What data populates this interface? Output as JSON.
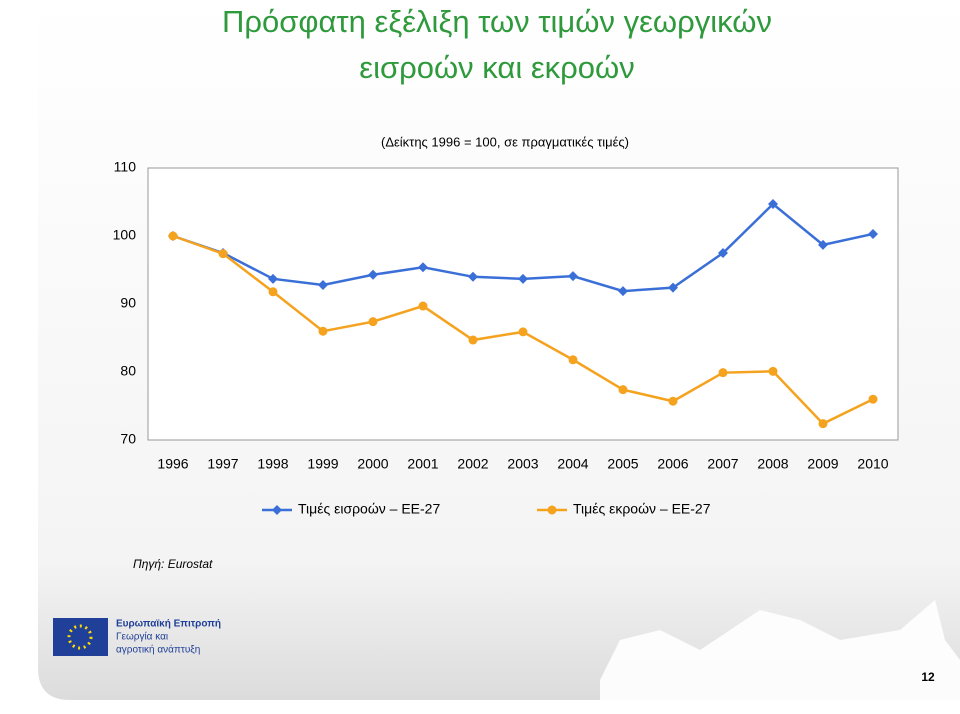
{
  "chart_data": {
    "type": "line",
    "title": [
      "Πρόσφατη εξέλιξη των τιμών γεωργικών",
      "εισροών και εκροών"
    ],
    "subtitle": "(Δείκτης 1996 = 100,  σε πραγματικές τιμές)",
    "categories": [
      "1996",
      "1997",
      "1998",
      "1999",
      "2000",
      "2001",
      "2002",
      "2003",
      "2004",
      "2005",
      "2006",
      "2007",
      "2008",
      "2009",
      "2010"
    ],
    "series": [
      {
        "name": "Τιμές εισροών – ΕΕ-27",
        "color": "#3a6fd8",
        "marker": "diamond",
        "values": [
          100,
          97.5,
          93.7,
          92.8,
          94.3,
          95.4,
          94.0,
          93.7,
          94.1,
          91.9,
          92.4,
          97.5,
          104.7,
          98.7,
          100.3
        ]
      },
      {
        "name": "Τιμές εκροών – ΕΕ-27",
        "color": "#f5a21e",
        "marker": "circle",
        "values": [
          100,
          97.4,
          91.8,
          86.0,
          87.4,
          89.7,
          84.7,
          85.9,
          81.8,
          77.4,
          75.7,
          79.9,
          80.1,
          72.4,
          76.0
        ]
      }
    ],
    "ylim": [
      70,
      110
    ],
    "yticks": [
      70,
      80,
      90,
      100,
      110
    ],
    "grid": false
  },
  "source": "Πηγή: Eurostat",
  "logo_lines": [
    "Ευρωπαϊκή Επιτροπή",
    "Γεωργία και",
    "αγροτική ανάπτυξη"
  ],
  "page_number": "12"
}
